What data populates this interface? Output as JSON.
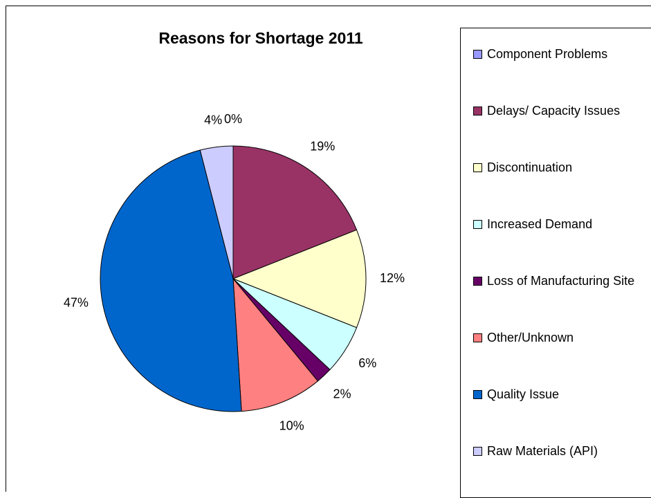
{
  "chart_data": {
    "type": "pie",
    "title": "Reasons for Shortage 2011",
    "categories": [
      "Component Problems",
      "Delays/ Capacity Issues",
      "Discontinuation",
      "Increased Demand",
      "Loss of Manufacturing Site",
      "Other/Unknown",
      "Quality Issue",
      "Raw Materials (API)"
    ],
    "values": [
      0,
      19,
      12,
      6,
      2,
      10,
      47,
      4
    ],
    "value_labels": [
      "0%",
      "19%",
      "12%",
      "6%",
      "2%",
      "10%",
      "47%",
      "4%"
    ],
    "colors": [
      "#9999ff",
      "#993366",
      "#ffffcc",
      "#ccffff",
      "#660066",
      "#ff8080",
      "#0066cc",
      "#ccccff"
    ],
    "legend": "right"
  }
}
